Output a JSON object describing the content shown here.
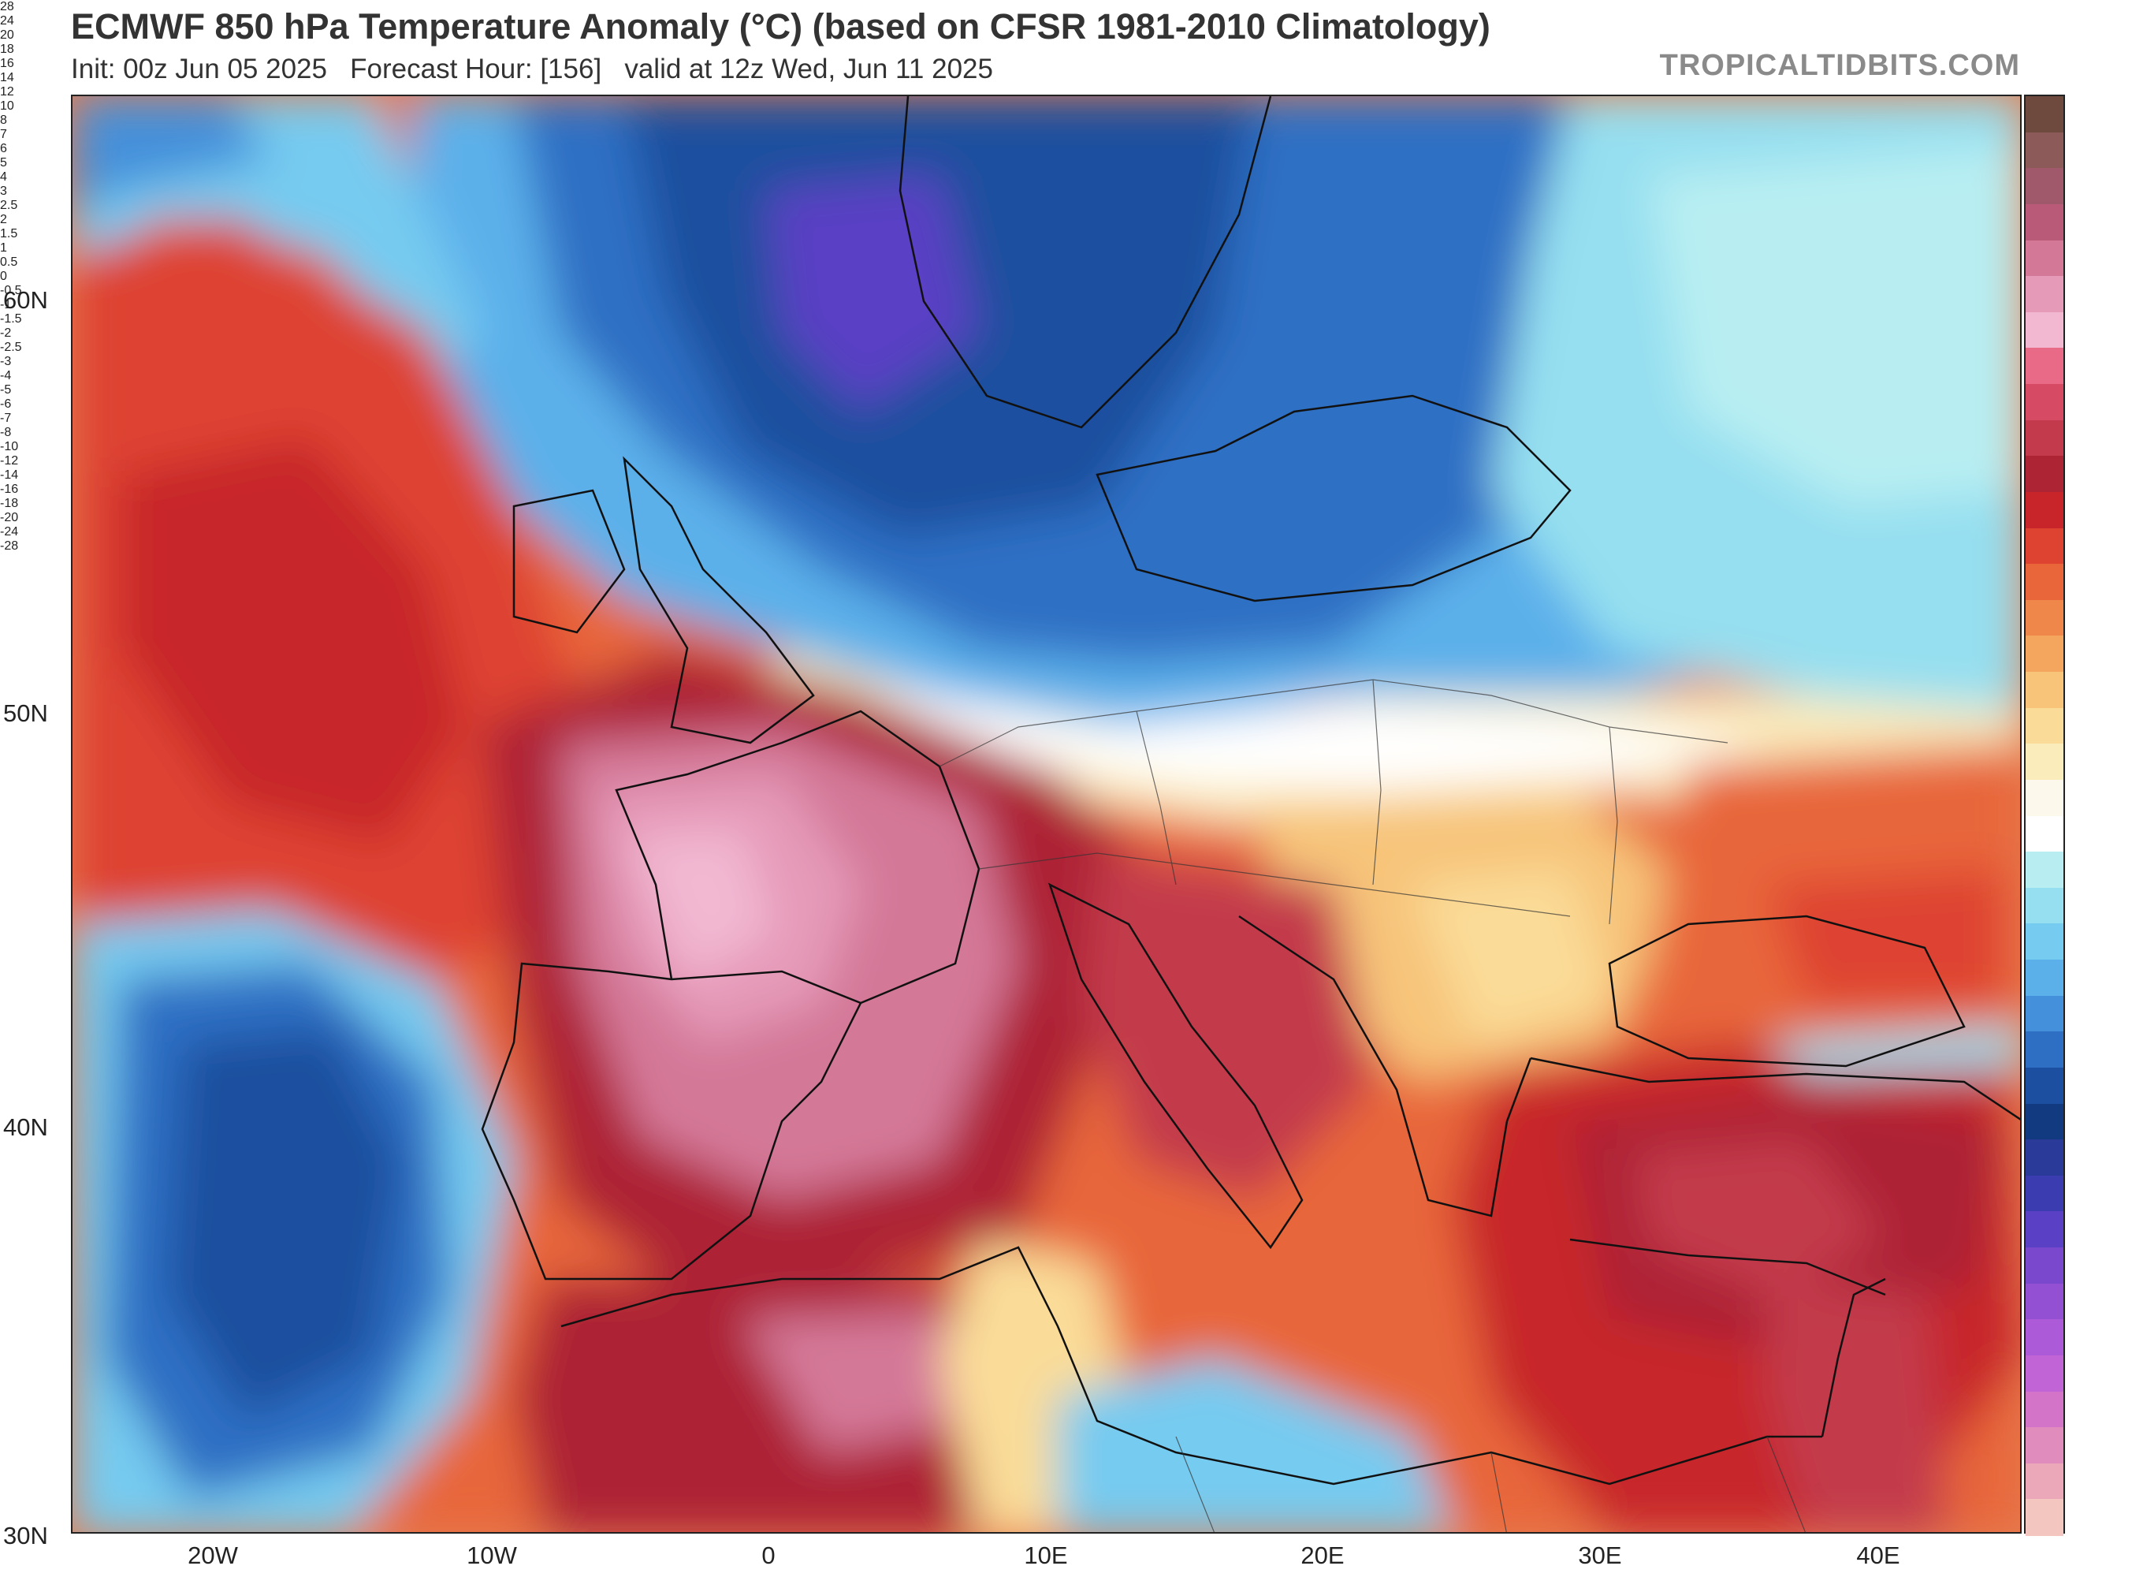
{
  "header": {
    "title": "ECMWF 850 hPa Temperature Anomaly (°C) (based on CFSR 1981-2010 Climatology)",
    "subtitle": "Init: 00z Jun 05 2025   Forecast Hour: [156]   valid at 12z Wed, Jun 11 2025",
    "brand": "TROPICALTIDBITS.COM"
  },
  "axes": {
    "lat_labels": [
      "60N",
      "50N",
      "40N",
      "30N"
    ],
    "lon_labels": [
      "20W",
      "10W",
      "0",
      "10E",
      "20E",
      "30E",
      "40E"
    ]
  },
  "colorbar": {
    "labels": [
      "28",
      "24",
      "20",
      "18",
      "16",
      "14",
      "12",
      "10",
      "8",
      "7",
      "6",
      "5",
      "4",
      "3",
      "2.5",
      "2",
      "1.5",
      "1",
      "0.5",
      "0",
      "-0.5",
      "-1",
      "-1.5",
      "-2",
      "-2.5",
      "-3",
      "-4",
      "-5",
      "-6",
      "-7",
      "-8",
      "-10",
      "-12",
      "-14",
      "-16",
      "-18",
      "-20",
      "-24",
      "-28"
    ],
    "colors": [
      "#6e4a3e",
      "#8d5a5a",
      "#a0596a",
      "#b85a78",
      "#d47898",
      "#e59ab8",
      "#f2b8d2",
      "#e86a86",
      "#d74a64",
      "#c33a4c",
      "#ad2434",
      "#c7252a",
      "#de4230",
      "#e8663a",
      "#f0874a",
      "#f4a55e",
      "#f7c47a",
      "#fadc98",
      "#fbecbc",
      "#fdf8ec",
      "#ffffff",
      "#b8eef2",
      "#95dff0",
      "#76cbf0",
      "#5bb0ea",
      "#4590da",
      "#2e6fc4",
      "#1c4f9f",
      "#123a80",
      "#2a3a98",
      "#3b3cb0",
      "#5a40c4",
      "#7a48cc",
      "#9450d2",
      "#ac5ad8",
      "#c064d6",
      "#d474c8",
      "#e08cbc",
      "#eaa8b8",
      "#f3c6c0"
    ]
  },
  "map_features": {
    "description_icons": [
      "coastline-icon",
      "border-icon"
    ]
  }
}
